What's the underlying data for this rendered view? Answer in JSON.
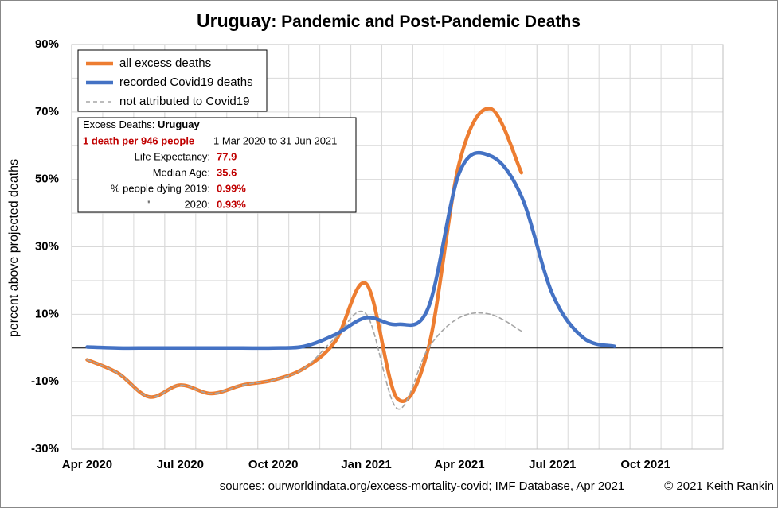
{
  "chart_data": {
    "type": "line",
    "title": {
      "country": "Uruguay",
      "rest": ": Pandemic and Post-Pandemic Deaths"
    },
    "ylabel": "percent above projected deaths",
    "x": [
      "2020-04",
      "2020-05",
      "2020-06",
      "2020-07",
      "2020-08",
      "2020-09",
      "2020-10",
      "2020-11",
      "2020-12",
      "2021-01",
      "2021-02",
      "2021-03",
      "2021-04",
      "2021-05",
      "2021-06",
      "2021-07",
      "2021-08",
      "2021-09"
    ],
    "series": [
      {
        "name": "all excess deaths",
        "color": "#ed7d31",
        "dash": "solid",
        "values": [
          -3.5,
          -7.5,
          -14.5,
          -11,
          -13.5,
          -11,
          -9.5,
          -6,
          2,
          19,
          -15,
          0,
          55,
          71,
          52,
          null,
          null,
          null
        ]
      },
      {
        "name": "recorded Covid19 deaths",
        "color": "#4472c4",
        "dash": "solid",
        "values": [
          0.3,
          0,
          0,
          0,
          0,
          0,
          0,
          0.5,
          4,
          9,
          7,
          12,
          52,
          57,
          45,
          16,
          3,
          0.5
        ]
      },
      {
        "name": "not attributed to Covid19",
        "color": "#a6a6a6",
        "dash": "dashed",
        "values": [
          -3.5,
          -7.5,
          -14.5,
          -11,
          -13.5,
          -11,
          -9.5,
          -6,
          3,
          10,
          -18,
          0,
          9,
          10,
          5,
          null,
          null,
          null
        ]
      }
    ],
    "xlim": [
      "2020-04",
      "2022-01"
    ],
    "xticks": [
      {
        "value": "2020-04",
        "label": "Apr 2020"
      },
      {
        "value": "2020-07",
        "label": "Jul 2020"
      },
      {
        "value": "2020-10",
        "label": "Oct 2020"
      },
      {
        "value": "2021-01",
        "label": "Jan 2021"
      },
      {
        "value": "2021-04",
        "label": "Apr 2021"
      },
      {
        "value": "2021-07",
        "label": "Jul 2021"
      },
      {
        "value": "2021-10",
        "label": "Oct 2021"
      }
    ],
    "xgrid": [
      "2020-05",
      "2020-06",
      "2020-07",
      "2020-08",
      "2020-09",
      "2020-10",
      "2020-11",
      "2020-12",
      "2021-01",
      "2021-02",
      "2021-03",
      "2021-04",
      "2021-05",
      "2021-06",
      "2021-07",
      "2021-08",
      "2021-09",
      "2021-10",
      "2021-11",
      "2021-12"
    ],
    "ylim": [
      -30,
      90
    ],
    "yticks": [
      {
        "value": -30,
        "label": "-30%"
      },
      {
        "value": -10,
        "label": "-10%"
      },
      {
        "value": 10,
        "label": "10%"
      },
      {
        "value": 30,
        "label": "30%"
      },
      {
        "value": 50,
        "label": "50%"
      },
      {
        "value": 70,
        "label": "70%"
      },
      {
        "value": 90,
        "label": "90%"
      }
    ],
    "ygrid": [
      -20,
      0,
      20,
      40,
      60,
      80
    ],
    "grid": true,
    "legend": "upper left",
    "infobox": {
      "heading": "Excess Deaths: ",
      "heading_country": "Uruguay",
      "rate": "1 death per 946 people",
      "period": "1 Mar 2020 to 31 Jun 2021",
      "rows": [
        {
          "label": "Life Expectancy:",
          "value": "77.9"
        },
        {
          "label": "Median Age:",
          "value": "35.6"
        },
        {
          "label": "% people dying 2019:",
          "value": "0.99%"
        },
        {
          "label": "\"            2020:",
          "value": "0.93%"
        }
      ]
    },
    "sources": "sources:  ourworldindata.org/excess-mortality-covid;  IMF Database, Apr 2021",
    "copyright": "© 2021 Keith Rankin"
  }
}
